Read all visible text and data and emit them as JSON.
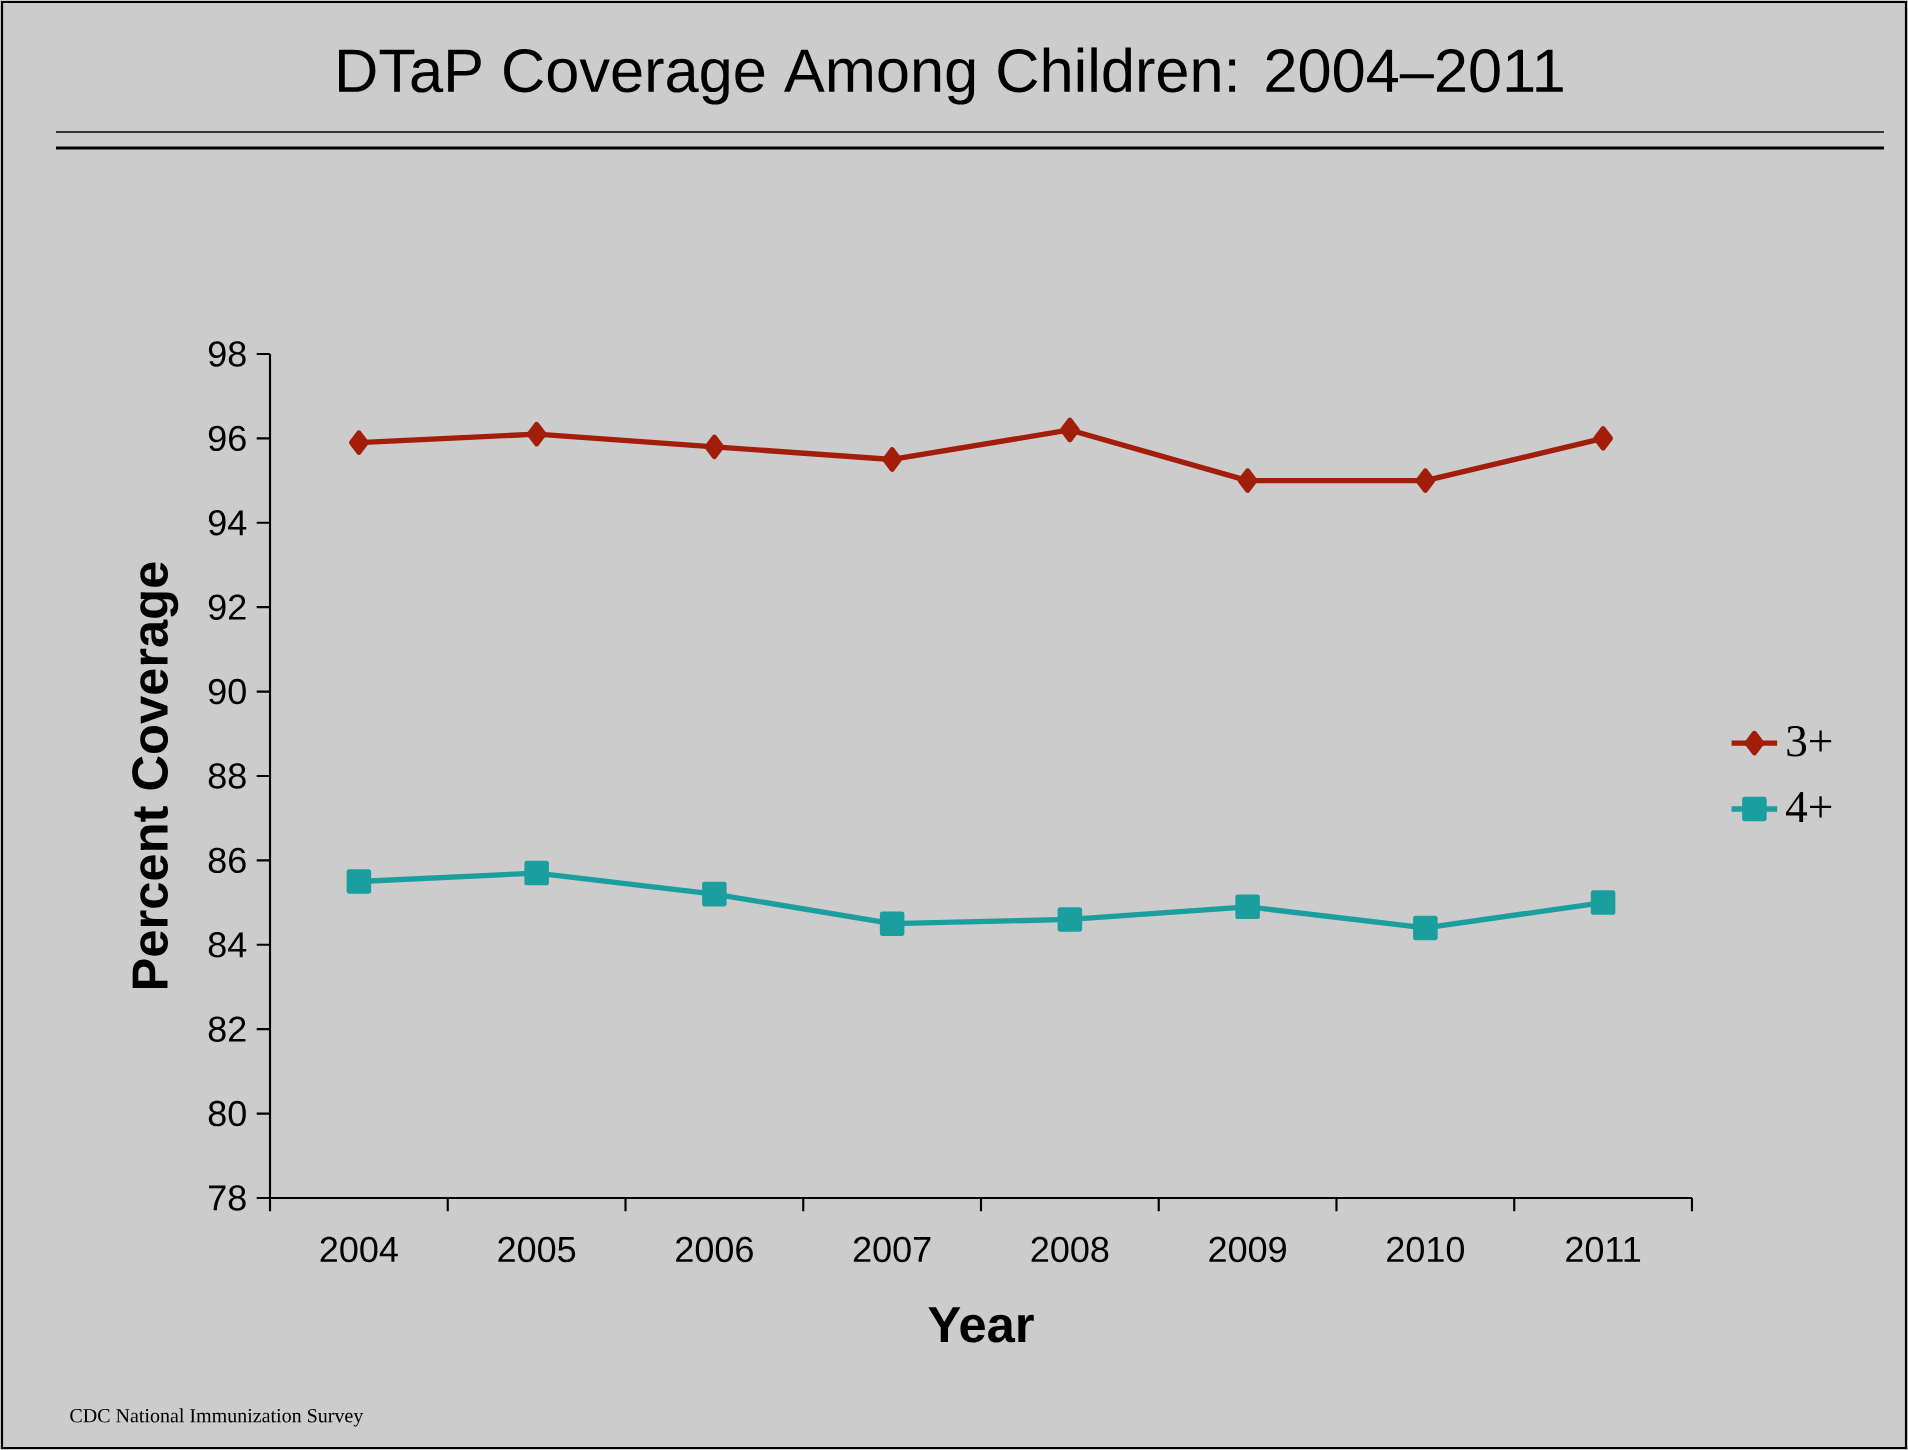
{
  "chart_data": {
    "type": "line",
    "title": "DTaP Coverage Among Children: 2004–2011",
    "xlabel": "Year",
    "ylabel": "Percent Coverage",
    "categories": [
      "2004",
      "2005",
      "2006",
      "2007",
      "2008",
      "2009",
      "2010",
      "2011"
    ],
    "series": [
      {
        "name": "3+",
        "color": "#a31d0b",
        "marker": "diamond",
        "values": [
          95.9,
          96.1,
          95.8,
          95.5,
          96.2,
          95.0,
          95.0,
          96.0
        ]
      },
      {
        "name": "4+",
        "color": "#1a9e9e",
        "marker": "square",
        "values": [
          85.5,
          85.7,
          85.2,
          84.5,
          84.6,
          84.9,
          84.4,
          85.0
        ]
      }
    ],
    "ylim": [
      78,
      98
    ],
    "yticks": [
      78,
      80,
      82,
      84,
      86,
      88,
      90,
      92,
      94,
      96,
      98
    ],
    "legend": "right",
    "grid": false,
    "line_style": "solid",
    "annotations": [
      "CDC National Immunization Survey"
    ]
  }
}
